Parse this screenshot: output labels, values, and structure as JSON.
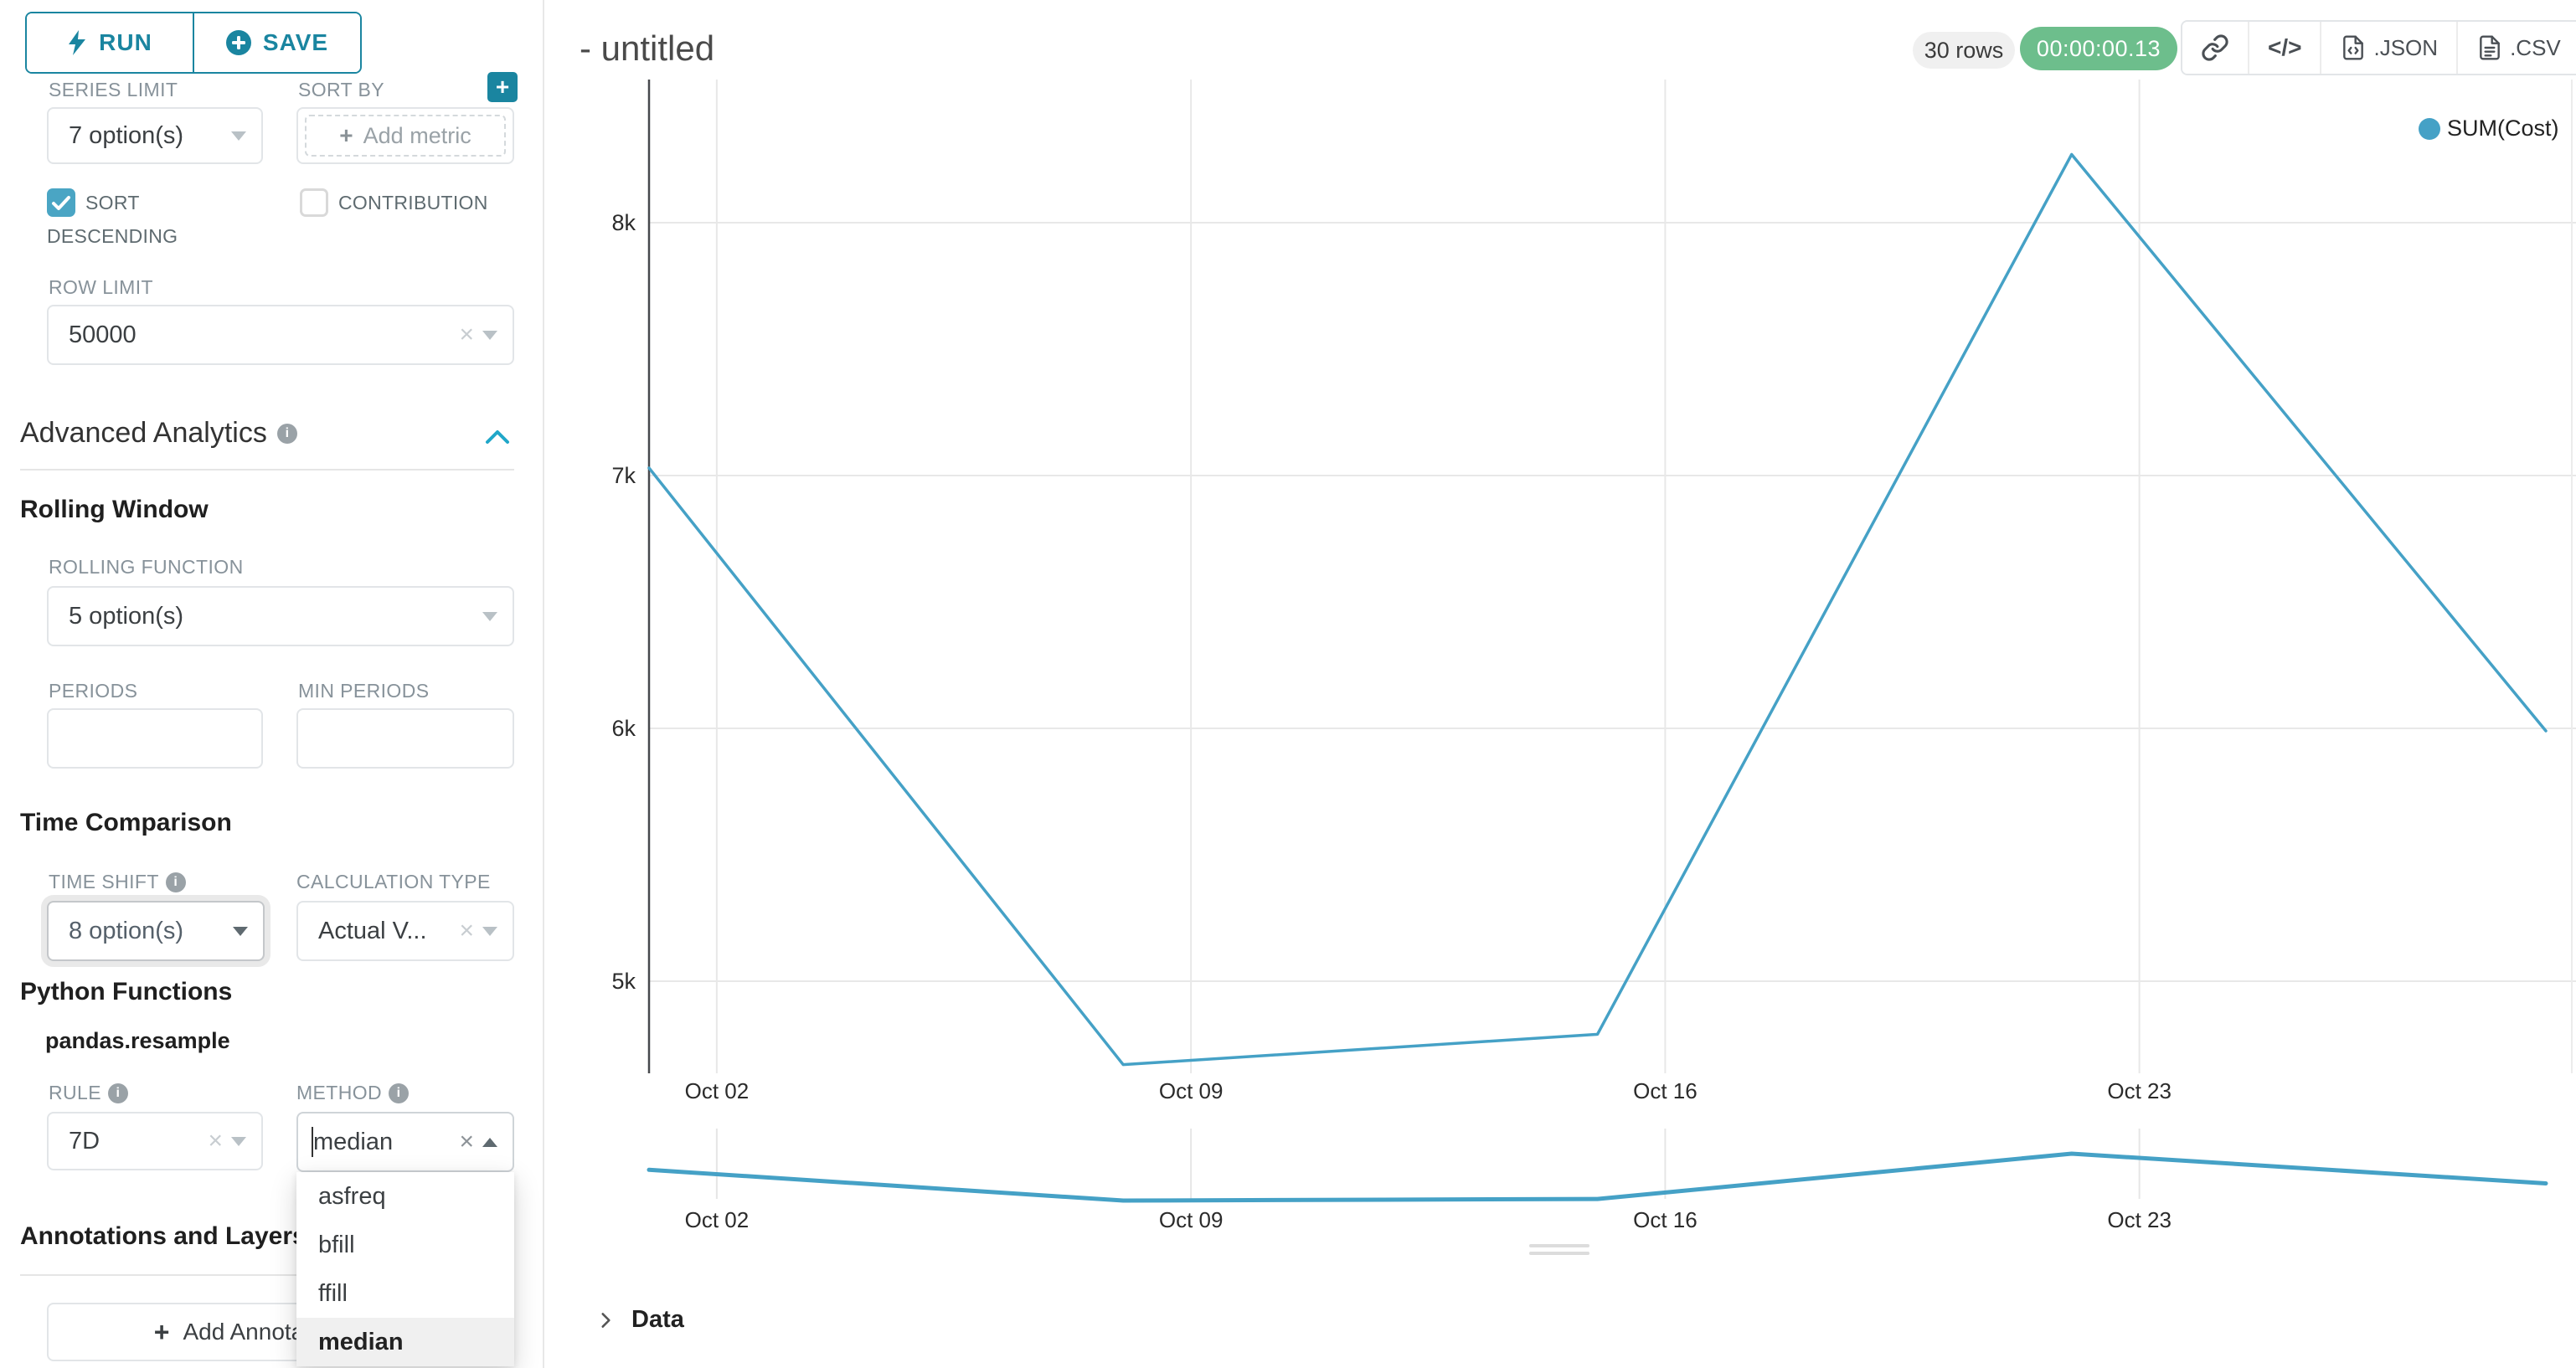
{
  "toolbar": {
    "run_label": "RUN",
    "save_label": "SAVE"
  },
  "sidebar": {
    "series_limit": {
      "label": "SERIES LIMIT",
      "value": "7 option(s)"
    },
    "sort_by": {
      "label": "SORT BY",
      "placeholder": "Add metric"
    },
    "sort_descending_label": "SORT DESCENDING",
    "contribution_label": "CONTRIBUTION",
    "row_limit": {
      "label": "ROW LIMIT",
      "value": "50000"
    },
    "advanced_analytics_title": "Advanced Analytics",
    "rolling_window_title": "Rolling Window",
    "rolling_function": {
      "label": "ROLLING FUNCTION",
      "value": "5 option(s)"
    },
    "periods_label": "PERIODS",
    "min_periods_label": "MIN PERIODS",
    "time_comparison_title": "Time Comparison",
    "time_shift": {
      "label": "TIME SHIFT",
      "value": "8 option(s)"
    },
    "calculation_type": {
      "label": "CALCULATION TYPE",
      "value": "Actual V..."
    },
    "python_functions_title": "Python Functions",
    "pandas_resample_title": "pandas.resample",
    "rule": {
      "label": "RULE",
      "value": "7D"
    },
    "method": {
      "label": "METHOD",
      "value": "median",
      "options": [
        "asfreq",
        "bfill",
        "ffill",
        "median"
      ],
      "selected": "median"
    },
    "annotations_title": "Annotations and Layers",
    "add_annotation_label": "Add Annotation Layer"
  },
  "header": {
    "title": "- untitled",
    "rows_badge": "30 rows",
    "timer": "00:00:00.13",
    "json_label": ".JSON",
    "csv_label": ".CSV",
    "code_glyph": "</>"
  },
  "legend": {
    "label": "SUM(Cost)"
  },
  "data_panel_label": "Data",
  "colors": {
    "accent_teal": "#1a85a0",
    "checkbox_teal": "#4aa5c4",
    "collapse_chevron_teal": "#20a7c9",
    "timer_green": "#6dbe8c",
    "line_blue": "#45a1c6"
  },
  "chart_data": {
    "type": "line",
    "series": [
      {
        "name": "SUM(Cost)",
        "x_days": [
          0,
          7,
          14,
          21,
          28
        ],
        "dates": [
          "Oct 01",
          "Oct 08",
          "Oct 15",
          "Oct 22",
          "Oct 29"
        ],
        "values": [
          7030,
          4670,
          4790,
          8270,
          5990
        ]
      }
    ],
    "x_tick_labels": [
      "Oct 02",
      "Oct 09",
      "Oct 16",
      "Oct 23"
    ],
    "x_tick_days": [
      1,
      8,
      15,
      22
    ],
    "y_tick_labels": [
      "8k",
      "7k",
      "6k",
      "5k"
    ],
    "y_tick_values": [
      8000,
      7000,
      6000,
      5000
    ],
    "ylim": [
      4550,
      8550
    ],
    "grid": true,
    "legend_position": "top-right",
    "has_mini_navigator": true,
    "line_color": "#45a1c6"
  }
}
